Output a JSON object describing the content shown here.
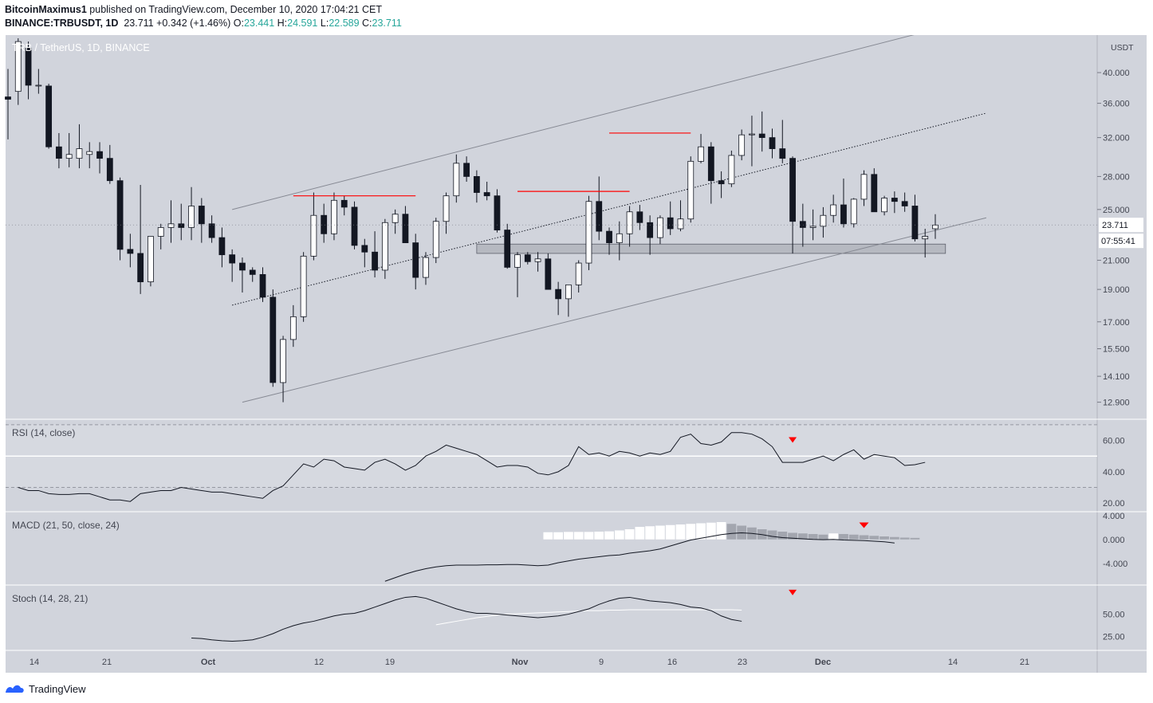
{
  "header": {
    "author": "BitcoinMaximus1",
    "published_text": "published on TradingView.com, December 10, 2020 17:04:21 CET",
    "symbol": "BINANCE:TRBUSDT, 1D",
    "last": "23.711",
    "change": "+0.342 (+1.46%)",
    "open_label": "O:",
    "open": "23.441",
    "high_label": "H:",
    "high": "24.591",
    "low_label": "L:",
    "low": "22.589",
    "close_label": "C:",
    "close": "23.711"
  },
  "colors": {
    "background": "#d1d4dc",
    "up": "#ffffff",
    "down": "#131722",
    "resistance": "#ff0000",
    "signal": "#ff0000",
    "channel": "#868993",
    "oscillator": "#131722"
  },
  "chart_data": [
    {
      "type": "candlestick",
      "title": "TRB / TetherUS, 1D, BINANCE",
      "y_scale": "log",
      "ylim": [
        12.2,
        45.5
      ],
      "currency_label": "USDT",
      "yticks": [
        "40.000",
        "36.000",
        "32.000",
        "28.000",
        "25.000",
        "21.000",
        "19.000",
        "17.000",
        "15.500",
        "14.100",
        "12.900"
      ],
      "last_price": "23.711",
      "countdown": "07:55:41",
      "x_labels": [
        "14",
        "21",
        "Oct",
        "12",
        "19",
        "Nov",
        "9",
        "16",
        "23",
        "Dec",
        "14",
        "21"
      ],
      "candles": [
        {
          "o": 36.8,
          "h": 40.5,
          "l": 31.8,
          "c": 36.5
        },
        {
          "o": 37.5,
          "h": 45.0,
          "l": 35.8,
          "c": 44.5
        },
        {
          "o": 43.5,
          "h": 44.5,
          "l": 36.5,
          "c": 38.3
        },
        {
          "o": 38.3,
          "h": 40.5,
          "l": 37.2,
          "c": 38.3
        },
        {
          "o": 38.2,
          "h": 38.5,
          "l": 30.8,
          "c": 31.0
        },
        {
          "o": 31.0,
          "h": 32.5,
          "l": 28.8,
          "c": 29.8
        },
        {
          "o": 29.8,
          "h": 32.5,
          "l": 28.9,
          "c": 30.2
        },
        {
          "o": 29.8,
          "h": 33.5,
          "l": 28.8,
          "c": 30.8
        },
        {
          "o": 30.2,
          "h": 31.5,
          "l": 28.8,
          "c": 30.5
        },
        {
          "o": 30.5,
          "h": 31.5,
          "l": 28.3,
          "c": 29.8
        },
        {
          "o": 29.8,
          "h": 31.2,
          "l": 27.3,
          "c": 27.6
        },
        {
          "o": 27.6,
          "h": 27.9,
          "l": 21.0,
          "c": 21.8
        },
        {
          "o": 21.8,
          "h": 23.0,
          "l": 20.5,
          "c": 21.5
        },
        {
          "o": 21.5,
          "h": 27.2,
          "l": 18.7,
          "c": 19.5
        },
        {
          "o": 19.5,
          "h": 22.5,
          "l": 19.2,
          "c": 22.8
        },
        {
          "o": 22.8,
          "h": 23.8,
          "l": 21.8,
          "c": 23.5
        },
        {
          "o": 23.5,
          "h": 25.8,
          "l": 22.3,
          "c": 23.8
        },
        {
          "o": 23.8,
          "h": 25.5,
          "l": 22.5,
          "c": 23.5
        },
        {
          "o": 23.5,
          "h": 27.0,
          "l": 22.5,
          "c": 25.3
        },
        {
          "o": 25.3,
          "h": 26.0,
          "l": 22.3,
          "c": 23.8
        },
        {
          "o": 23.8,
          "h": 24.5,
          "l": 22.3,
          "c": 22.7
        },
        {
          "o": 22.7,
          "h": 23.5,
          "l": 20.5,
          "c": 21.4
        },
        {
          "o": 21.4,
          "h": 21.8,
          "l": 19.5,
          "c": 20.8
        },
        {
          "o": 20.8,
          "h": 21.2,
          "l": 18.8,
          "c": 20.3
        },
        {
          "o": 20.3,
          "h": 20.5,
          "l": 19.5,
          "c": 20.0
        },
        {
          "o": 20.0,
          "h": 20.5,
          "l": 18.2,
          "c": 18.5
        },
        {
          "o": 18.5,
          "h": 19.0,
          "l": 13.6,
          "c": 13.8
        },
        {
          "o": 13.8,
          "h": 16.2,
          "l": 12.9,
          "c": 16.0
        },
        {
          "o": 16.0,
          "h": 18.0,
          "l": 15.6,
          "c": 17.3
        },
        {
          "o": 17.3,
          "h": 21.6,
          "l": 17.0,
          "c": 21.3
        },
        {
          "o": 21.3,
          "h": 26.5,
          "l": 21.0,
          "c": 24.5
        },
        {
          "o": 24.5,
          "h": 25.5,
          "l": 22.3,
          "c": 23.0
        },
        {
          "o": 23.0,
          "h": 26.5,
          "l": 22.5,
          "c": 25.8
        },
        {
          "o": 25.8,
          "h": 26.2,
          "l": 24.5,
          "c": 25.2
        },
        {
          "o": 25.2,
          "h": 25.7,
          "l": 21.8,
          "c": 22.1
        },
        {
          "o": 22.1,
          "h": 22.6,
          "l": 20.5,
          "c": 21.6
        },
        {
          "o": 21.6,
          "h": 23.2,
          "l": 19.8,
          "c": 20.3
        },
        {
          "o": 20.3,
          "h": 24.2,
          "l": 19.7,
          "c": 23.9
        },
        {
          "o": 23.9,
          "h": 25.0,
          "l": 23.0,
          "c": 24.6
        },
        {
          "o": 24.6,
          "h": 25.3,
          "l": 22.3,
          "c": 22.3
        },
        {
          "o": 22.3,
          "h": 23.0,
          "l": 19.0,
          "c": 19.8
        },
        {
          "o": 19.8,
          "h": 21.6,
          "l": 19.3,
          "c": 21.2
        },
        {
          "o": 21.2,
          "h": 24.3,
          "l": 20.8,
          "c": 24.0
        },
        {
          "o": 24.0,
          "h": 26.5,
          "l": 23.0,
          "c": 26.2
        },
        {
          "o": 26.2,
          "h": 30.2,
          "l": 25.6,
          "c": 29.3
        },
        {
          "o": 29.3,
          "h": 30.0,
          "l": 27.5,
          "c": 28.0
        },
        {
          "o": 28.0,
          "h": 28.6,
          "l": 25.6,
          "c": 26.5
        },
        {
          "o": 26.5,
          "h": 27.5,
          "l": 25.8,
          "c": 26.2
        },
        {
          "o": 26.2,
          "h": 26.8,
          "l": 23.1,
          "c": 23.3
        },
        {
          "o": 23.3,
          "h": 23.8,
          "l": 20.4,
          "c": 20.5
        },
        {
          "o": 20.5,
          "h": 21.6,
          "l": 18.5,
          "c": 21.4
        },
        {
          "o": 21.4,
          "h": 21.6,
          "l": 20.7,
          "c": 20.9
        },
        {
          "o": 20.9,
          "h": 21.6,
          "l": 20.2,
          "c": 21.1
        },
        {
          "o": 21.1,
          "h": 21.5,
          "l": 19.0,
          "c": 19.0
        },
        {
          "o": 19.0,
          "h": 19.5,
          "l": 17.4,
          "c": 18.4
        },
        {
          "o": 18.4,
          "h": 19.3,
          "l": 17.3,
          "c": 19.3
        },
        {
          "o": 19.3,
          "h": 21.0,
          "l": 18.8,
          "c": 20.8
        },
        {
          "o": 20.8,
          "h": 26.2,
          "l": 20.3,
          "c": 25.7
        },
        {
          "o": 25.7,
          "h": 28.0,
          "l": 22.5,
          "c": 23.2
        },
        {
          "o": 23.2,
          "h": 23.5,
          "l": 21.4,
          "c": 22.3
        },
        {
          "o": 22.3,
          "h": 24.0,
          "l": 21.0,
          "c": 23.0
        },
        {
          "o": 23.0,
          "h": 25.3,
          "l": 22.0,
          "c": 24.8
        },
        {
          "o": 24.8,
          "h": 25.4,
          "l": 23.3,
          "c": 23.9
        },
        {
          "o": 23.9,
          "h": 24.5,
          "l": 21.4,
          "c": 22.7
        },
        {
          "o": 22.7,
          "h": 24.5,
          "l": 22.2,
          "c": 24.3
        },
        {
          "o": 24.3,
          "h": 25.7,
          "l": 22.9,
          "c": 23.4
        },
        {
          "o": 23.4,
          "h": 25.8,
          "l": 23.2,
          "c": 24.2
        },
        {
          "o": 24.2,
          "h": 30.0,
          "l": 23.9,
          "c": 29.5
        },
        {
          "o": 29.5,
          "h": 32.4,
          "l": 29.3,
          "c": 31.0
        },
        {
          "o": 31.0,
          "h": 31.5,
          "l": 25.5,
          "c": 27.6
        },
        {
          "o": 27.6,
          "h": 28.5,
          "l": 26.0,
          "c": 27.3
        },
        {
          "o": 27.3,
          "h": 30.6,
          "l": 27.0,
          "c": 30.1
        },
        {
          "o": 30.1,
          "h": 32.9,
          "l": 29.6,
          "c": 32.3
        },
        {
          "o": 32.3,
          "h": 34.5,
          "l": 29.0,
          "c": 32.4
        },
        {
          "o": 32.4,
          "h": 35.0,
          "l": 30.5,
          "c": 32.0
        },
        {
          "o": 32.0,
          "h": 33.0,
          "l": 29.8,
          "c": 30.8
        },
        {
          "o": 30.8,
          "h": 34.0,
          "l": 29.3,
          "c": 29.8
        },
        {
          "o": 29.8,
          "h": 30.0,
          "l": 21.5,
          "c": 24.0
        },
        {
          "o": 24.0,
          "h": 25.5,
          "l": 22.0,
          "c": 23.5
        },
        {
          "o": 23.5,
          "h": 25.0,
          "l": 22.5,
          "c": 23.6
        },
        {
          "o": 23.6,
          "h": 25.2,
          "l": 22.7,
          "c": 24.5
        },
        {
          "o": 24.5,
          "h": 26.3,
          "l": 23.9,
          "c": 25.4
        },
        {
          "o": 25.4,
          "h": 27.8,
          "l": 23.5,
          "c": 23.8
        },
        {
          "o": 23.8,
          "h": 26.0,
          "l": 23.5,
          "c": 25.9
        },
        {
          "o": 25.9,
          "h": 28.6,
          "l": 25.3,
          "c": 28.2
        },
        {
          "o": 28.2,
          "h": 28.8,
          "l": 24.8,
          "c": 24.8
        },
        {
          "o": 24.8,
          "h": 26.2,
          "l": 24.5,
          "c": 26.0
        },
        {
          "o": 26.0,
          "h": 26.6,
          "l": 24.7,
          "c": 25.7
        },
        {
          "o": 25.7,
          "h": 26.5,
          "l": 24.8,
          "c": 25.3
        },
        {
          "o": 25.3,
          "h": 26.3,
          "l": 22.4,
          "c": 22.6
        },
        {
          "o": 22.6,
          "h": 23.4,
          "l": 21.2,
          "c": 22.8
        },
        {
          "o": 23.4,
          "h": 24.6,
          "l": 22.6,
          "c": 23.7
        }
      ],
      "resistance_lines": [
        {
          "start": 28,
          "end": 40,
          "price": 26.2
        },
        {
          "start": 50,
          "end": 61,
          "price": 26.6
        },
        {
          "start": 59,
          "end": 67,
          "price": 32.5
        }
      ],
      "support_zone": {
        "start": 46,
        "end": 92,
        "low": 21.5,
        "high": 22.2
      },
      "channel": {
        "upper": [
          [
            22,
            25.0
          ],
          [
            90,
            46.0
          ]
        ],
        "middle": [
          [
            22,
            18.0
          ],
          [
            96,
            34.8
          ]
        ],
        "lower": [
          [
            23,
            12.9
          ],
          [
            96,
            24.3
          ]
        ]
      }
    },
    {
      "type": "line",
      "title": "RSI (14, close)",
      "yticks": [
        "60.00",
        "40.00",
        "20.00"
      ],
      "ylim": [
        15,
        73
      ],
      "bands": [
        70,
        50,
        30
      ],
      "start": 1,
      "values": [
        30,
        28,
        28,
        26,
        25.5,
        25.5,
        26,
        26,
        24,
        22,
        22,
        21,
        26,
        27,
        28,
        28,
        30,
        29,
        28,
        27,
        27,
        26,
        25,
        24,
        23,
        28,
        31,
        38,
        45,
        43,
        48,
        47,
        43,
        42,
        41,
        46,
        48,
        45,
        41,
        44,
        50,
        53,
        57,
        55,
        53,
        51,
        47,
        43,
        44,
        44,
        43,
        39,
        38,
        40,
        44,
        56,
        51,
        52,
        50,
        53,
        52,
        50,
        52,
        51,
        53,
        62,
        64,
        58,
        57,
        59,
        65,
        65,
        64,
        61,
        56,
        46,
        46,
        46,
        48,
        50,
        47,
        51,
        54,
        48,
        51,
        50,
        49,
        44,
        44.5,
        46
      ],
      "signal_marker": {
        "index": 77,
        "value": 60
      }
    },
    {
      "type": "bar+line",
      "title": "MACD (21, 50, close, 24)",
      "yticks": [
        "4.000",
        "0.000",
        "-4.000"
      ],
      "ylim": [
        -7.5,
        4.5
      ],
      "histogram_start": 53,
      "histogram": [
        1.2,
        1.2,
        1.25,
        1.25,
        1.25,
        1.3,
        1.35,
        1.5,
        1.7,
        2.1,
        2.2,
        2.3,
        2.4,
        2.5,
        2.6,
        2.7,
        2.8,
        2.9,
        2.6,
        2.3,
        2.0,
        1.7,
        1.5,
        1.3,
        1.1,
        1.0,
        0.9,
        0.8,
        1.0,
        0.9,
        0.8,
        0.7,
        0.6,
        0.5,
        0.4,
        0.3,
        0.25
      ],
      "macd_start": 37,
      "macd": [
        -7.0,
        -6.4,
        -5.8,
        -5.3,
        -4.9,
        -4.6,
        -4.4,
        -4.3,
        -4.3,
        -4.3,
        -4.25,
        -4.25,
        -4.2,
        -4.2,
        -4.3,
        -4.4,
        -4.3,
        -3.9,
        -3.6,
        -3.3,
        -3.1,
        -2.9,
        -2.7,
        -2.6,
        -2.3,
        -2.1,
        -1.9,
        -1.6,
        -1.1,
        -0.6,
        -0.1,
        0.2,
        0.5,
        0.8,
        1.0,
        1.1,
        1.0,
        0.8,
        0.5,
        0.3,
        0.2,
        0.1,
        0.0,
        -0.05,
        0.0,
        -0.1,
        -0.15,
        -0.2,
        -0.3,
        -0.4,
        -0.6
      ],
      "signal_marker": {
        "index": 84,
        "value": 2.3
      }
    },
    {
      "type": "line",
      "title": "Stoch (14, 28, 21)",
      "yticks": [
        "50.00",
        "25.00"
      ],
      "ylim": [
        10,
        82
      ],
      "k_start": 18,
      "k": [
        23,
        22.5,
        21,
        20,
        19.5,
        20,
        21,
        24,
        28,
        33,
        37,
        40,
        42,
        45,
        48,
        50,
        51,
        54,
        58,
        62,
        66,
        69,
        70,
        68,
        64,
        60,
        56,
        53,
        51,
        51,
        50,
        49,
        48,
        47,
        46,
        47,
        48,
        50,
        53,
        56,
        61,
        65,
        68,
        69,
        67,
        65,
        64,
        63,
        61,
        58,
        57,
        54,
        48,
        44,
        42
      ],
      "d_start": 42,
      "d": [
        38,
        40,
        42,
        44,
        46,
        47.5,
        49,
        50,
        50.5,
        51,
        51.5,
        52,
        52.5,
        53,
        53.5,
        54,
        54,
        54.5,
        54.5,
        55,
        55,
        55,
        55,
        55,
        55,
        55,
        55,
        55,
        55,
        55,
        54.5
      ],
      "signal_marker": {
        "index": 77,
        "value": 74
      }
    }
  ],
  "branding": {
    "logo_text": "TradingView"
  }
}
